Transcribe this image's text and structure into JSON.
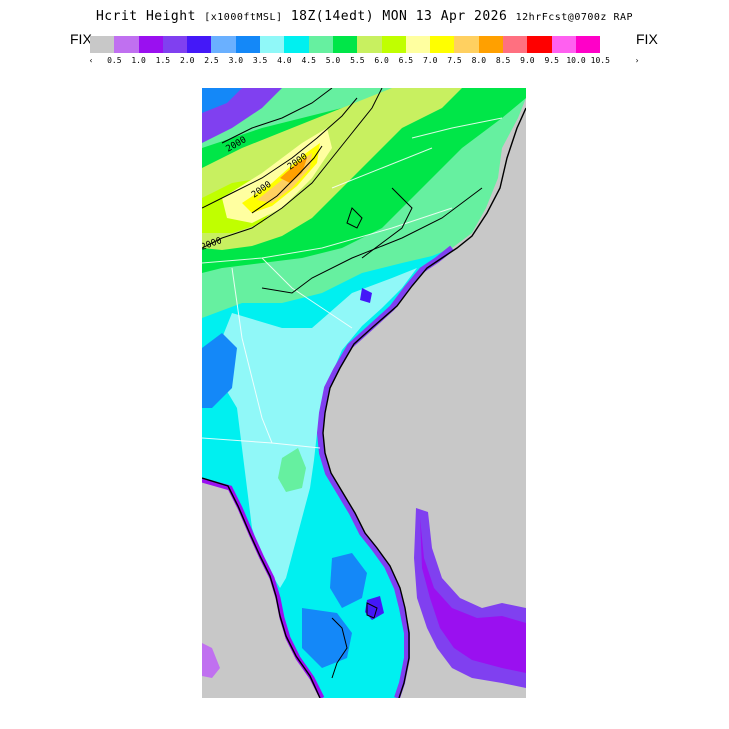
{
  "title": {
    "main": "Hcrit Height",
    "units": "[x1000ftMSL]",
    "valid": "18Z(14edt) MON 13 Apr 2026",
    "forecast": "12hrFcst@0700z RAP"
  },
  "colorbar": {
    "left_label": "FIX",
    "right_label": "FIX",
    "left_arrow": "‹",
    "right_arrow": "›",
    "colors": [
      "#c8c8c8",
      "#c070f0",
      "#9a10f0",
      "#8040f0",
      "#4418f8",
      "#6ab0ff",
      "#1488f8",
      "#90f8f8",
      "#00f0f0",
      "#66f0a0",
      "#00e648",
      "#c8f060",
      "#c0ff00",
      "#ffffa0",
      "#ffff00",
      "#ffd060",
      "#ffa000",
      "#ff7080",
      "#ff0000",
      "#ff60f0",
      "#ff00c8"
    ],
    "tick_labels": [
      "0.5",
      "1.0",
      "1.5",
      "2.0",
      "2.5",
      "3.0",
      "3.5",
      "4.0",
      "4.5",
      "5.0",
      "5.5",
      "6.0",
      "6.5",
      "7.0",
      "7.5",
      "8.0",
      "8.5",
      "9.0",
      "9.5",
      "10.0",
      "10.5"
    ]
  },
  "map": {
    "region": "Southeastern United States",
    "contour_labels": [
      "2000",
      "2000",
      "2000",
      "2000"
    ],
    "colors": {
      "ocean": "#c8c8c8",
      "border": "#ffffff",
      "coast": "#000000"
    }
  }
}
